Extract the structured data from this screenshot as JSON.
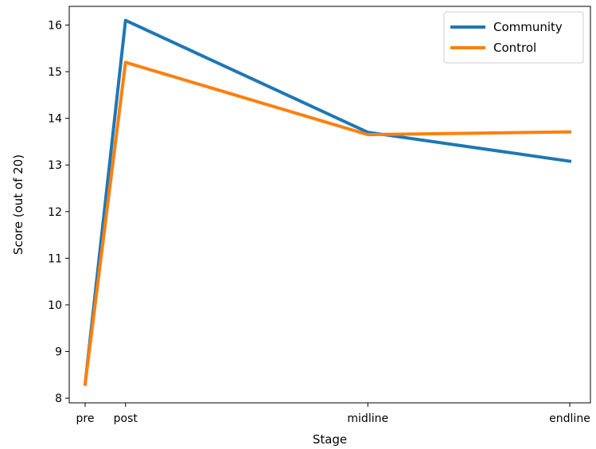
{
  "chart_data": {
    "type": "line",
    "title": "",
    "xlabel": "Stage",
    "ylabel": "Score (out of 20)",
    "categories": [
      "pre",
      "post",
      "midline",
      "endline"
    ],
    "x": [
      0,
      1,
      7,
      12
    ],
    "yticks": [
      8,
      9,
      10,
      11,
      12,
      13,
      14,
      15,
      16
    ],
    "ylim": [
      7.9,
      16.4
    ],
    "grid": false,
    "legend_position": "top-right",
    "series": [
      {
        "name": "Community",
        "color": "#1f77b4",
        "values": [
          8.3,
          16.1,
          13.7,
          13.08
        ]
      },
      {
        "name": "Control",
        "color": "#ff7f0e",
        "values": [
          8.3,
          15.2,
          13.65,
          13.71
        ]
      }
    ]
  }
}
